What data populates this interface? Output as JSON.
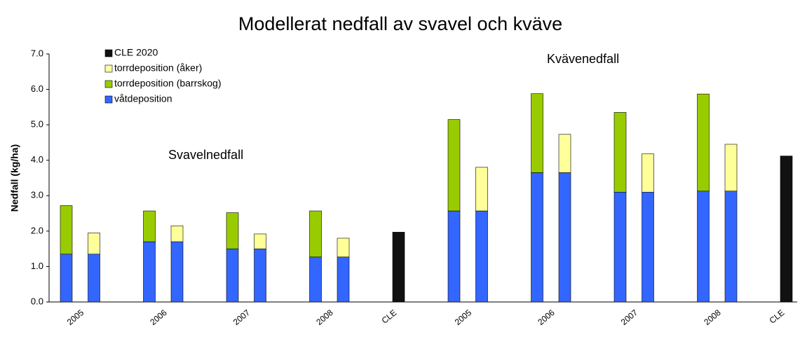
{
  "chart_data": {
    "type": "bar",
    "title": "Modellerat nedfall av svavel och kväve",
    "y_label": "Nedfall (kg/ha)",
    "annotations": [
      "Svavelnedfall",
      "Kvävenedfall"
    ],
    "categories": [
      "2005",
      "2006",
      "2007",
      "2008",
      "CLE",
      "2005",
      "2006",
      "2007",
      "2008",
      "CLE"
    ],
    "series": [
      {
        "name": "CLE 2020",
        "color": "#111111",
        "values": [
          null,
          null,
          null,
          null,
          1.97,
          null,
          null,
          null,
          null,
          4.12
        ]
      },
      {
        "name": "torrdeposition (åker)",
        "color": "#ffff99",
        "values": [
          0.6,
          0.45,
          0.42,
          0.53,
          null,
          1.23,
          1.08,
          1.08,
          1.32,
          null
        ]
      },
      {
        "name": "torrdeposition (barrskog)",
        "color": "#99cc00",
        "values": [
          1.37,
          0.87,
          1.02,
          1.3,
          null,
          2.58,
          2.23,
          2.25,
          2.74,
          null
        ]
      },
      {
        "name": "våtdeposition",
        "color": "#3366ff",
        "values": [
          1.35,
          1.7,
          1.5,
          1.27,
          null,
          2.57,
          3.65,
          3.1,
          3.13,
          null
        ]
      }
    ],
    "ylim": [
      0,
      7
    ],
    "yticks": [
      {
        "value": 0,
        "label": "0.0"
      },
      {
        "value": 1,
        "label": "1.0"
      },
      {
        "value": 2,
        "label": "2.0"
      },
      {
        "value": 3,
        "label": "3.0"
      },
      {
        "value": 4,
        "label": "4.0"
      },
      {
        "value": 5,
        "label": "5.0"
      },
      {
        "value": 6,
        "label": "6.0"
      },
      {
        "value": 7,
        "label": "7.0"
      }
    ],
    "grid": false,
    "legend": "upper left"
  }
}
